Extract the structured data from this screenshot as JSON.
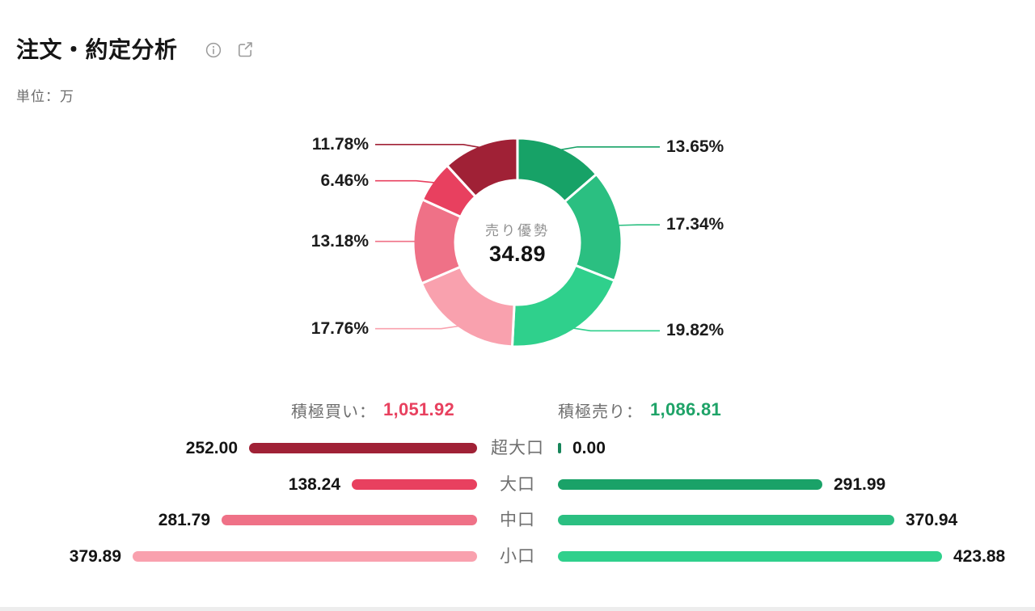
{
  "header": {
    "title": "注文・約定分析",
    "unit_label": "単位：万"
  },
  "chart_data": {
    "type": "donut+bar",
    "donut": {
      "center_label": "売り優勢",
      "center_value": "34.89",
      "start": "top",
      "direction": "clockwise",
      "segments": [
        {
          "label": "13.65%",
          "value": 13.65,
          "color": "#17a267",
          "side": "right"
        },
        {
          "label": "17.34%",
          "value": 17.34,
          "color": "#2bbf81",
          "side": "right"
        },
        {
          "label": "19.82%",
          "value": 19.82,
          "color": "#2fd08c",
          "side": "right"
        },
        {
          "label": "17.76%",
          "value": 17.76,
          "color": "#f9a1ae",
          "side": "left"
        },
        {
          "label": "13.18%",
          "value": 13.18,
          "color": "#ef7187",
          "side": "left"
        },
        {
          "label": "6.46%",
          "value": 6.46,
          "color": "#e8405f",
          "side": "left"
        },
        {
          "label": "11.78%",
          "value": 11.78,
          "color": "#a02136",
          "side": "left"
        }
      ]
    },
    "totals": {
      "buy_label": "積極買い：",
      "buy_value": "1,051.92",
      "buy_color": "#e8415f",
      "sell_label": "積極売り：",
      "sell_value": "1,086.81",
      "sell_color": "#1fa368"
    },
    "bars": {
      "max_value": 423.88,
      "rows": [
        {
          "category": "超大口",
          "buy": 252.0,
          "buy_label": "252.00",
          "buy_color": "#a02136",
          "sell": 0.0,
          "sell_label": "0.00",
          "sell_color": "#17855a"
        },
        {
          "category": "大口",
          "buy": 138.24,
          "buy_label": "138.24",
          "buy_color": "#e8405f",
          "sell": 291.99,
          "sell_label": "291.99",
          "sell_color": "#1aa268"
        },
        {
          "category": "中口",
          "buy": 281.79,
          "buy_label": "281.79",
          "buy_color": "#ef7187",
          "sell": 370.94,
          "sell_label": "370.94",
          "sell_color": "#2bbf81"
        },
        {
          "category": "小口",
          "buy": 379.89,
          "buy_label": "379.89",
          "buy_color": "#f9a1ae",
          "sell": 423.88,
          "sell_label": "423.88",
          "sell_color": "#2fd08c"
        }
      ]
    }
  }
}
